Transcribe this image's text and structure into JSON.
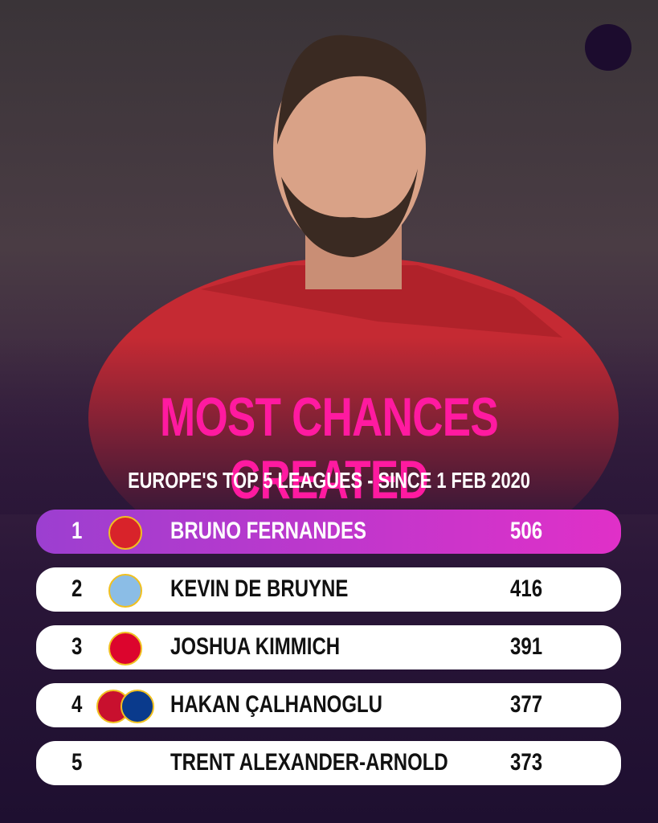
{
  "header": {
    "title": "MOST CHANCES CREATED",
    "subtitle": "EUROPE'S TOP 5 LEAGUES - SINCE  1 FEB 2020"
  },
  "table": {
    "rows": [
      [
        1,
        "BRUNO FERNANDES",
        506
      ],
      [
        2,
        "KEVIN DE BRUYNE",
        416
      ],
      [
        3,
        "JOSHUA KIMMICH",
        391
      ],
      [
        4,
        "HAKAN ÇALHANOGLU",
        377
      ],
      [
        5,
        "TRENT ALEXANDER-ARNOLD",
        373
      ]
    ]
  }
}
